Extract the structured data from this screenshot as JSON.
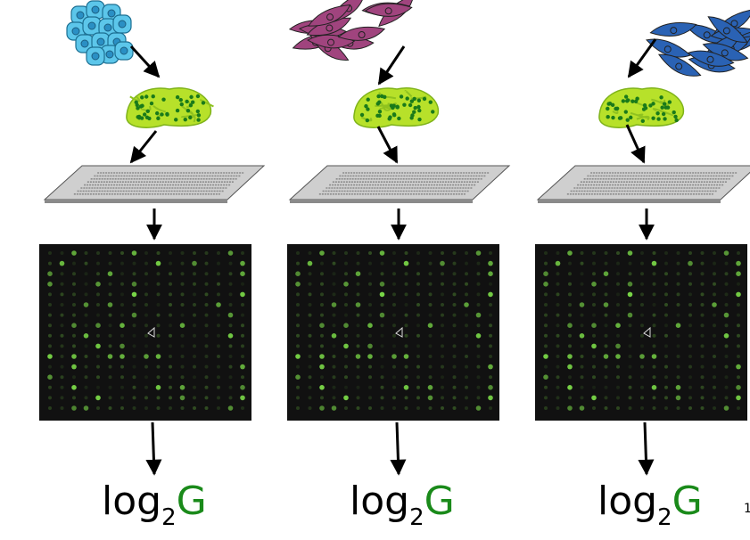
{
  "columns": [
    {
      "cell_type": "round-cells",
      "cell_color": "#5cc6ea",
      "label_base": "log",
      "label_sub": "2",
      "label_var": "G"
    },
    {
      "cell_type": "spindle-cells",
      "cell_color": "#a0447e",
      "label_base": "log",
      "label_sub": "2",
      "label_var": "G"
    },
    {
      "cell_type": "spindle-cells",
      "cell_color": "#2a62b4",
      "label_base": "log",
      "label_sub": "2",
      "label_var": "G"
    }
  ],
  "colors": {
    "rna_blob": "#b7e12a",
    "rna_dots": "#1a7a1a",
    "glass_slide": "#cfcfcf",
    "array_bg": "#111111",
    "spot": "#7ee04a",
    "label_accent": "#1a8a1a"
  },
  "page_number": "1"
}
